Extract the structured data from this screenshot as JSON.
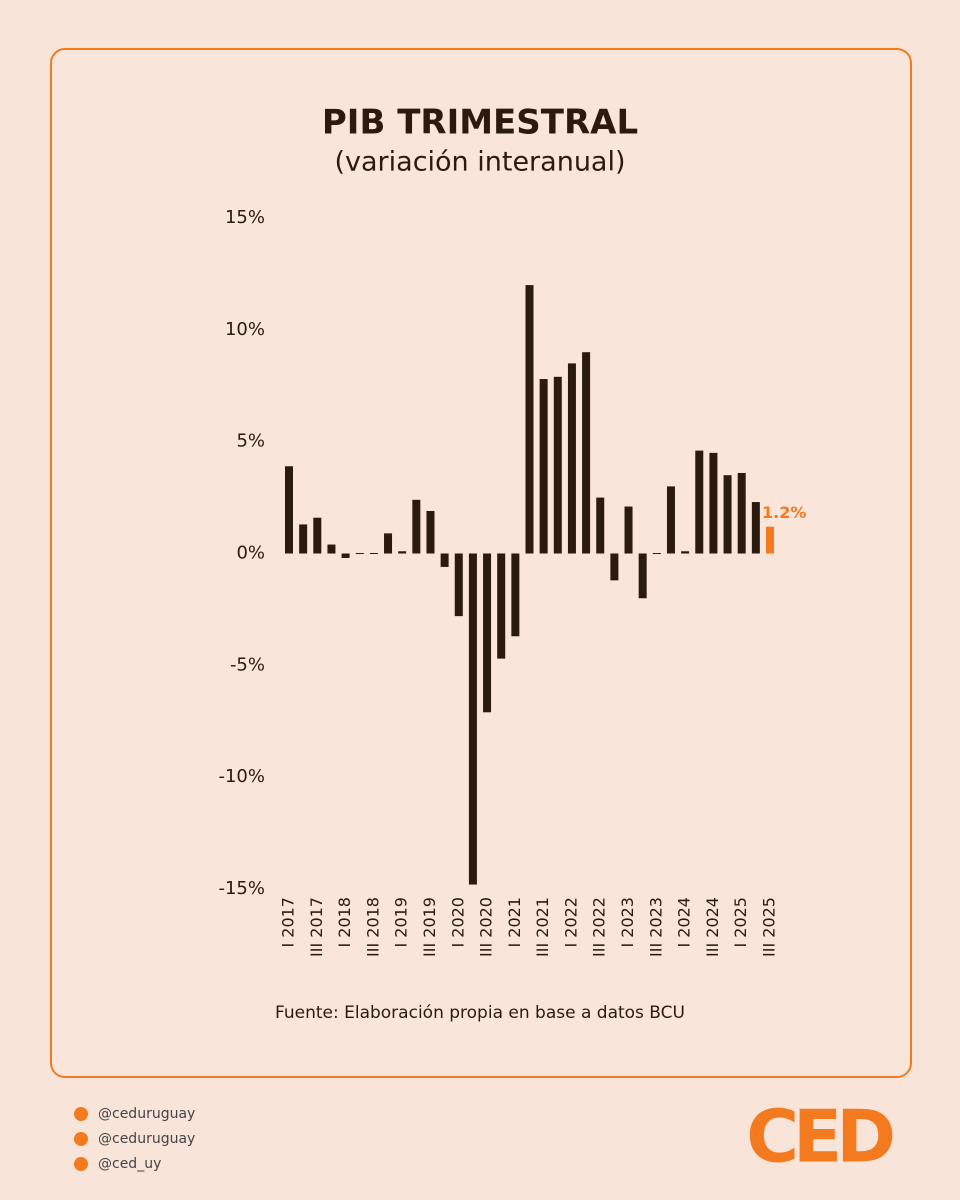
{
  "chart_data": {
    "type": "bar",
    "title": "PIB TRIMESTRAL",
    "subtitle": "(variación interanual)",
    "categories": [
      "I 2017",
      null,
      "III 2017",
      null,
      "I 2018",
      null,
      "III 2018",
      null,
      "I 2019",
      null,
      "III 2019",
      null,
      "I 2020",
      null,
      "III 2020",
      null,
      "I 2021",
      null,
      "III 2021",
      null,
      "I 2022",
      null,
      "III 2022",
      null,
      "I 2023",
      null,
      "III 2023",
      null,
      "I 2024",
      null,
      "III 2024",
      null,
      "I 2025",
      null,
      "III 2025"
    ],
    "values": [
      3.9,
      1.3,
      1.6,
      0.4,
      -0.2,
      0,
      0,
      0.9,
      0.1,
      2.4,
      1.9,
      -0.6,
      -2.8,
      -14.8,
      -7.1,
      -4.7,
      -3.7,
      12.0,
      7.8,
      7.9,
      8.5,
      9.0,
      2.5,
      -1.2,
      2.1,
      -2.0,
      0,
      3.0,
      0.1,
      4.6,
      4.5,
      3.5,
      3.6,
      2.3,
      1.2
    ],
    "value_labels": [
      null,
      null,
      null,
      null,
      null,
      null,
      null,
      null,
      null,
      null,
      null,
      null,
      null,
      null,
      null,
      null,
      null,
      null,
      null,
      null,
      null,
      null,
      null,
      null,
      null,
      null,
      null,
      null,
      null,
      null,
      null,
      null,
      null,
      null,
      "1.2%"
    ],
    "colors": [
      "#2b1a0e",
      "#2b1a0e",
      "#2b1a0e",
      "#2b1a0e",
      "#2b1a0e",
      "#2b1a0e",
      "#2b1a0e",
      "#2b1a0e",
      "#2b1a0e",
      "#2b1a0e",
      "#2b1a0e",
      "#2b1a0e",
      "#2b1a0e",
      "#2b1a0e",
      "#2b1a0e",
      "#2b1a0e",
      "#2b1a0e",
      "#2b1a0e",
      "#2b1a0e",
      "#2b1a0e",
      "#2b1a0e",
      "#2b1a0e",
      "#2b1a0e",
      "#2b1a0e",
      "#2b1a0e",
      "#2b1a0e",
      "#2b1a0e",
      "#2b1a0e",
      "#2b1a0e",
      "#2b1a0e",
      "#2b1a0e",
      "#2b1a0e",
      "#2b1a0e",
      "#2b1a0e",
      "#f47a20"
    ],
    "ylim": [
      -15,
      15
    ],
    "yticks": [
      {
        "value": -15,
        "label": "-15%"
      },
      {
        "value": -10,
        "label": "-10%"
      },
      {
        "value": -5,
        "label": "-5%"
      },
      {
        "value": 0,
        "label": "0%"
      },
      {
        "value": 5,
        "label": "5%"
      },
      {
        "value": 10,
        "label": "10%"
      },
      {
        "value": 15,
        "label": "15%"
      }
    ],
    "grid": false,
    "source": "Fuente: Elaboración propia en base a datos BCU"
  },
  "footer": {
    "handles": [
      "@ceduruguay",
      "@ceduruguay",
      "@ced_uy"
    ],
    "logo": "CED"
  }
}
